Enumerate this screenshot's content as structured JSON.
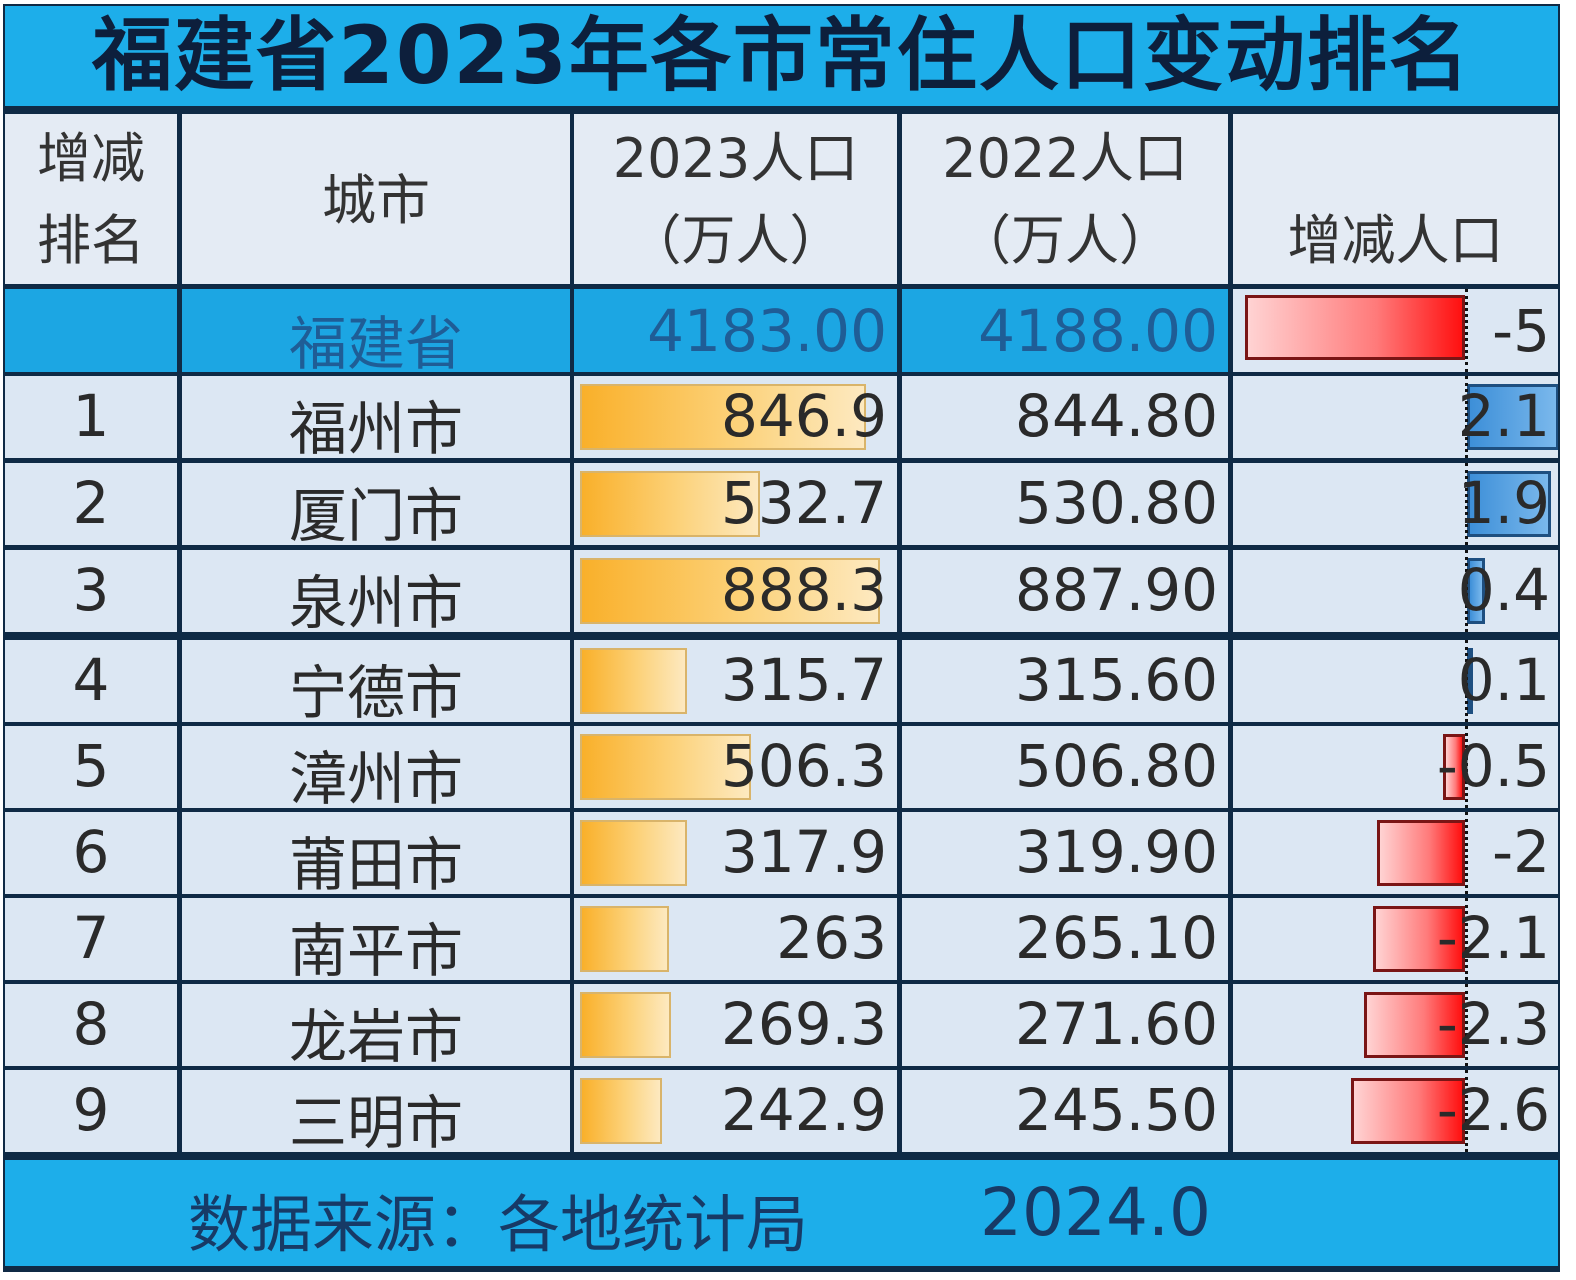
{
  "title": "福建省2023年各市常住人口变动排名",
  "header": {
    "rank_line1": "增减",
    "rank_line2": "排名",
    "city": "城市",
    "p2023_line1": "2023人口",
    "p2023_line2": "（万人）",
    "p2022_line1": "2022人口",
    "p2022_line2": "（万人）",
    "change": "增减人口"
  },
  "province": {
    "rank": "",
    "name": "福建省",
    "p2023": "4183.00",
    "p2022": "4188.00",
    "change": "-5",
    "change_num": -5
  },
  "rows": [
    {
      "rank": "1",
      "city": "福州市",
      "p2023": "846.9",
      "p2022": "844.80",
      "change": "2.1",
      "change_num": 2.1,
      "p2023_num": 846.9
    },
    {
      "rank": "2",
      "city": "厦门市",
      "p2023": "532.7",
      "p2022": "530.80",
      "change": "1.9",
      "change_num": 1.9,
      "p2023_num": 532.7
    },
    {
      "rank": "3",
      "city": "泉州市",
      "p2023": "888.3",
      "p2022": "887.90",
      "change": "0.4",
      "change_num": 0.4,
      "p2023_num": 888.3
    },
    {
      "rank": "4",
      "city": "宁德市",
      "p2023": "315.7",
      "p2022": "315.60",
      "change": "0.1",
      "change_num": 0.1,
      "p2023_num": 315.7
    },
    {
      "rank": "5",
      "city": "漳州市",
      "p2023": "506.3",
      "p2022": "506.80",
      "change": "-0.5",
      "change_num": -0.5,
      "p2023_num": 506.3
    },
    {
      "rank": "6",
      "city": "莆田市",
      "p2023": "317.9",
      "p2022": "319.90",
      "change": "-2",
      "change_num": -2,
      "p2023_num": 317.9
    },
    {
      "rank": "7",
      "city": "南平市",
      "p2023": "263",
      "p2022": "265.10",
      "change": "-2.1",
      "change_num": -2.1,
      "p2023_num": 263
    },
    {
      "rank": "8",
      "city": "龙岩市",
      "p2023": "269.3",
      "p2022": "271.60",
      "change": "-2.3",
      "change_num": -2.3,
      "p2023_num": 269.3
    },
    {
      "rank": "9",
      "city": "三明市",
      "p2023": "242.9",
      "p2022": "245.50",
      "change": "-2.6",
      "change_num": -2.6,
      "p2023_num": 242.9
    }
  ],
  "footer": {
    "source": "数据来源：各地统计局",
    "date": "2024.0"
  },
  "colors": {
    "title_bg": "#1daeea",
    "title_text": "#0d1f3c",
    "cell_bg": "#dce7f3",
    "bar_2023": "#f9b02a",
    "bar_positive": "#3d8fd8",
    "bar_negative": "#ff1010"
  },
  "chart_data": {
    "type": "table",
    "title": "福建省2023年各市常住人口变动排名",
    "columns": [
      "增减排名",
      "城市",
      "2023人口（万人）",
      "2022人口（万人）",
      "增减人口"
    ],
    "categories": [
      "福建省",
      "福州市",
      "厦门市",
      "泉州市",
      "宁德市",
      "漳州市",
      "莆田市",
      "南平市",
      "龙岩市",
      "三明市"
    ],
    "series": [
      {
        "name": "2023人口（万人）",
        "values": [
          4183.0,
          846.9,
          532.7,
          888.3,
          315.7,
          506.3,
          317.9,
          263,
          269.3,
          242.9
        ]
      },
      {
        "name": "2022人口（万人）",
        "values": [
          4188.0,
          844.8,
          530.8,
          887.9,
          315.6,
          506.8,
          319.9,
          265.1,
          271.6,
          245.5
        ]
      },
      {
        "name": "增减人口",
        "values": [
          -5,
          2.1,
          1.9,
          0.4,
          0.1,
          -0.5,
          -2,
          -2.1,
          -2.3,
          -2.6
        ]
      }
    ],
    "ranks": [
      "",
      "1",
      "2",
      "3",
      "4",
      "5",
      "6",
      "7",
      "8",
      "9"
    ],
    "notes": "Data bars: orange gradient for 2023 population; blue (positive) / red (negative) bars around a dashed zero axis for change.",
    "source": "数据来源：各地统计局 2024.0"
  }
}
